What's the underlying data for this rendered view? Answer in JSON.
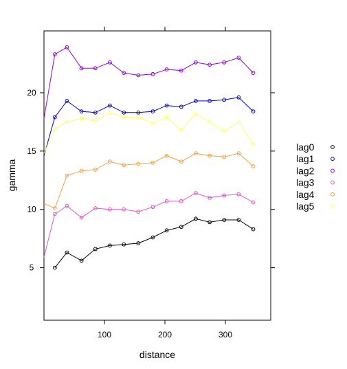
{
  "chart_data": {
    "type": "line",
    "xlabel": "distance",
    "ylabel": "gamma",
    "xlim": [
      0,
      375
    ],
    "ylim": [
      0.5,
      25.3
    ],
    "xticks": [
      100,
      200,
      300
    ],
    "yticks": [
      5,
      10,
      15,
      20
    ],
    "x": [
      18,
      38,
      62,
      85,
      109,
      132,
      156,
      180,
      203,
      227,
      251,
      274,
      298,
      322,
      346
    ],
    "legend_position": "right",
    "series": [
      {
        "name": "lag0",
        "color": "#000000",
        "start": null,
        "values": [
          5.0,
          6.3,
          5.6,
          6.6,
          6.9,
          7.0,
          7.1,
          7.6,
          8.2,
          8.5,
          9.2,
          8.9,
          9.1,
          9.1,
          8.3
        ]
      },
      {
        "name": "lag1",
        "color": "#0000bb",
        "start": [
          0,
          14.6
        ],
        "values": [
          17.9,
          19.3,
          18.4,
          18.3,
          18.9,
          18.3,
          18.3,
          18.4,
          18.9,
          18.8,
          19.3,
          19.3,
          19.4,
          19.6,
          18.4
        ]
      },
      {
        "name": "lag2",
        "color": "#9400d3",
        "start": [
          0,
          17.8
        ],
        "values": [
          23.3,
          23.9,
          22.1,
          22.1,
          22.6,
          21.7,
          21.5,
          21.6,
          22.0,
          21.9,
          22.6,
          22.4,
          22.6,
          23.0,
          21.7
        ]
      },
      {
        "name": "lag3",
        "color": "#dd55cc",
        "start": [
          0,
          5.9
        ],
        "values": [
          9.6,
          10.3,
          9.3,
          10.1,
          10.0,
          10.0,
          9.8,
          10.2,
          10.7,
          10.7,
          11.4,
          11.0,
          11.2,
          11.3,
          10.6
        ]
      },
      {
        "name": "lag4",
        "color": "#eea040",
        "start": [
          0,
          10.5
        ],
        "values": [
          10.1,
          12.9,
          13.3,
          13.4,
          14.1,
          13.8,
          13.9,
          14.0,
          14.6,
          14.1,
          14.8,
          14.6,
          14.5,
          14.8,
          13.7
        ]
      },
      {
        "name": "lag5",
        "color": "#ffff66",
        "start": [
          0,
          14.8
        ],
        "values": [
          16.9,
          17.5,
          17.8,
          17.6,
          18.3,
          17.9,
          17.9,
          17.4,
          17.9,
          16.8,
          18.2,
          17.5,
          16.7,
          17.5,
          15.6
        ]
      }
    ]
  }
}
